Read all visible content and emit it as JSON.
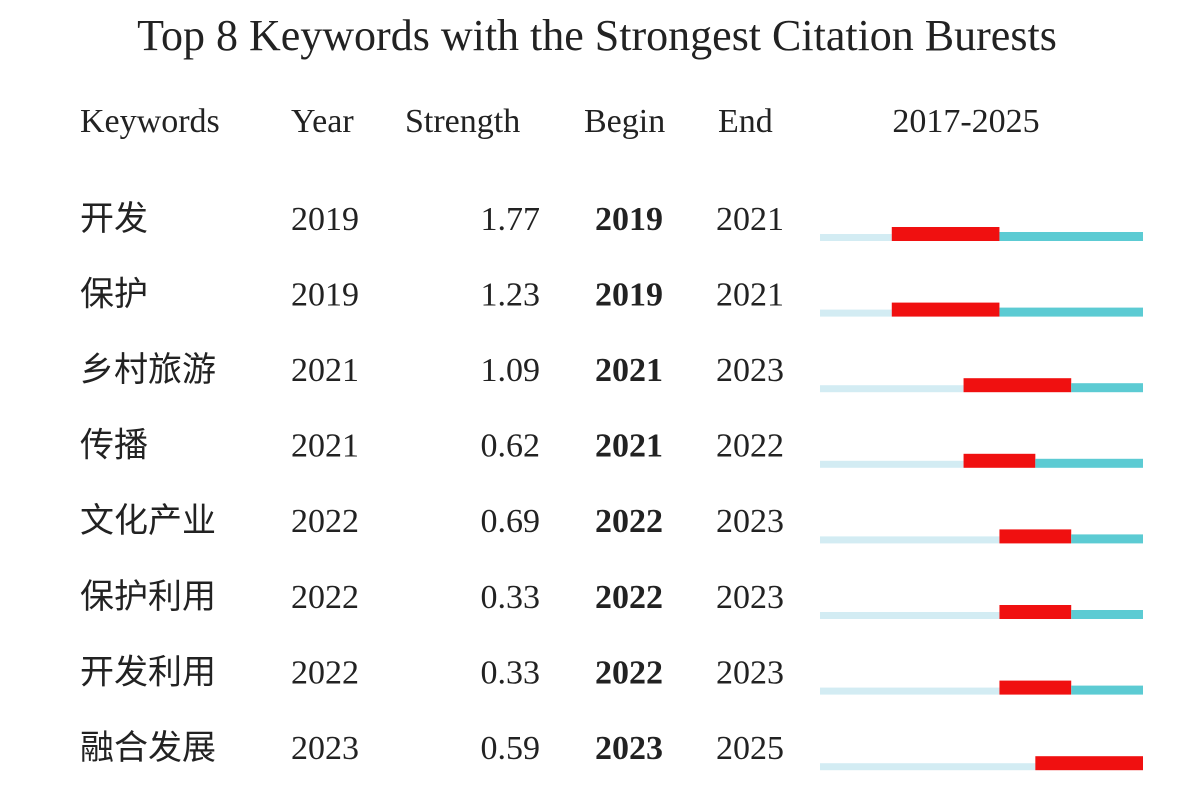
{
  "title": "Top 8 Keywords with the Strongest Citation Burests",
  "header": [
    "Keywords",
    "Year",
    "Strength",
    "Begin",
    "End",
    "2017-2025"
  ],
  "rows": [
    {
      "keyword": "开发",
      "year": 2019,
      "strength": 1.77,
      "begin": 2019,
      "end": 2021
    },
    {
      "keyword": "保护",
      "year": 2019,
      "strength": 1.23,
      "begin": 2019,
      "end": 2021
    },
    {
      "keyword": "乡村旅游",
      "year": 2021,
      "strength": 1.09,
      "begin": 2021,
      "end": 2023
    },
    {
      "keyword": "传播",
      "year": 2021,
      "strength": 0.62,
      "begin": 2021,
      "end": 2022
    },
    {
      "keyword": "文化产业",
      "year": 2022,
      "strength": 0.69,
      "begin": 2022,
      "end": 2023
    },
    {
      "keyword": "保护利用",
      "year": 2022,
      "strength": 0.33,
      "begin": 2022,
      "end": 2023
    },
    {
      "keyword": "开发利用",
      "year": 2022,
      "strength": 0.33,
      "begin": 2022,
      "end": 2023
    },
    {
      "keyword": "融合发展",
      "year": 2023,
      "strength": 0.59,
      "begin": 2023,
      "end": 2025
    }
  ]
}
